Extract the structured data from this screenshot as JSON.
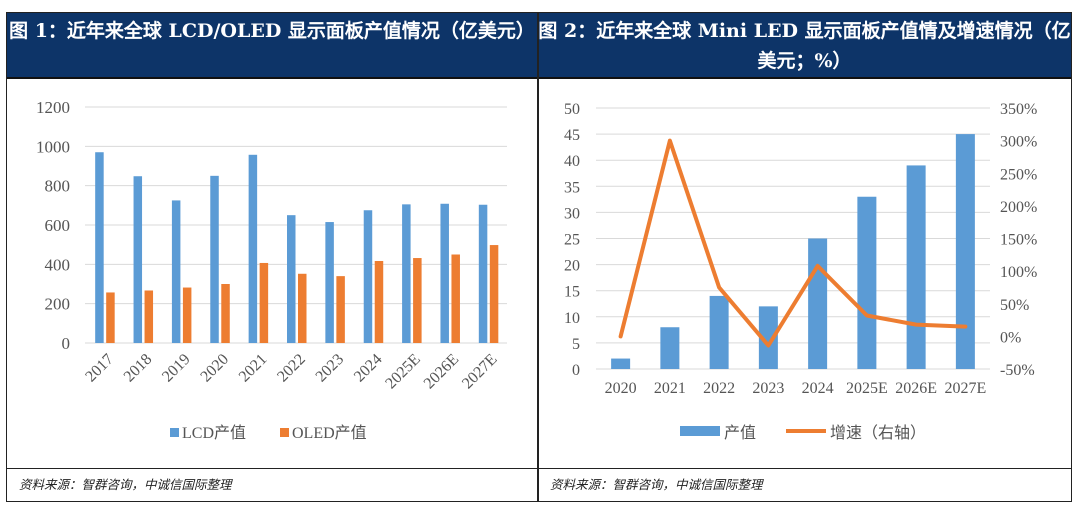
{
  "footer_left": "资料来源：智群咨询，中诚信国际整理",
  "footer_right": "资料来源：智群咨询，中诚信国际整理",
  "chart_data": [
    {
      "type": "bar",
      "title": "图 1：近年来全球 LCD/OLED 显示面板产值情况（亿美元）",
      "categories": [
        "2017",
        "2018",
        "2019",
        "2020",
        "2021",
        "2022",
        "2023",
        "2024",
        "2025E",
        "2026E",
        "2027E"
      ],
      "series": [
        {
          "name": "LCD产值",
          "color": "#5b9bd5",
          "values": [
            970,
            848,
            725,
            850,
            957,
            650,
            615,
            675,
            705,
            708,
            703
          ]
        },
        {
          "name": "OLED产值",
          "color": "#ed7d31",
          "values": [
            257,
            267,
            282,
            300,
            407,
            352,
            340,
            417,
            432,
            450,
            498
          ]
        }
      ],
      "ylim": [
        0,
        1200
      ],
      "yticks": [
        "0",
        "200",
        "400",
        "600",
        "800",
        "1000",
        "1200"
      ],
      "grid": true,
      "legend": "bottom"
    },
    {
      "type": "bar+line",
      "title": "图 2：近年来全球 Mini LED 显示面板产值情及增速情况（亿美元；%）",
      "categories": [
        "2020",
        "2021",
        "2022",
        "2023",
        "2024",
        "2025E",
        "2026E",
        "2027E"
      ],
      "series": [
        {
          "name": "产值",
          "type": "bar",
          "axis": "left",
          "color": "#5b9bd5",
          "values": [
            2,
            8,
            14,
            12,
            25,
            33,
            39,
            45
          ]
        },
        {
          "name": "增速（右轴）",
          "type": "line",
          "axis": "right",
          "color": "#ed7d31",
          "values": [
            0,
            300,
            75,
            -14,
            108,
            32,
            18,
            15
          ]
        }
      ],
      "ylim": [
        0,
        50
      ],
      "yticks": [
        "0",
        "5",
        "10",
        "15",
        "20",
        "25",
        "30",
        "35",
        "40",
        "45",
        "50"
      ],
      "y2lim": [
        -50,
        350
      ],
      "y2ticks": [
        "-50%",
        "0%",
        "50%",
        "100%",
        "150%",
        "200%",
        "250%",
        "300%",
        "350%"
      ],
      "grid": true,
      "legend": "bottom"
    }
  ]
}
